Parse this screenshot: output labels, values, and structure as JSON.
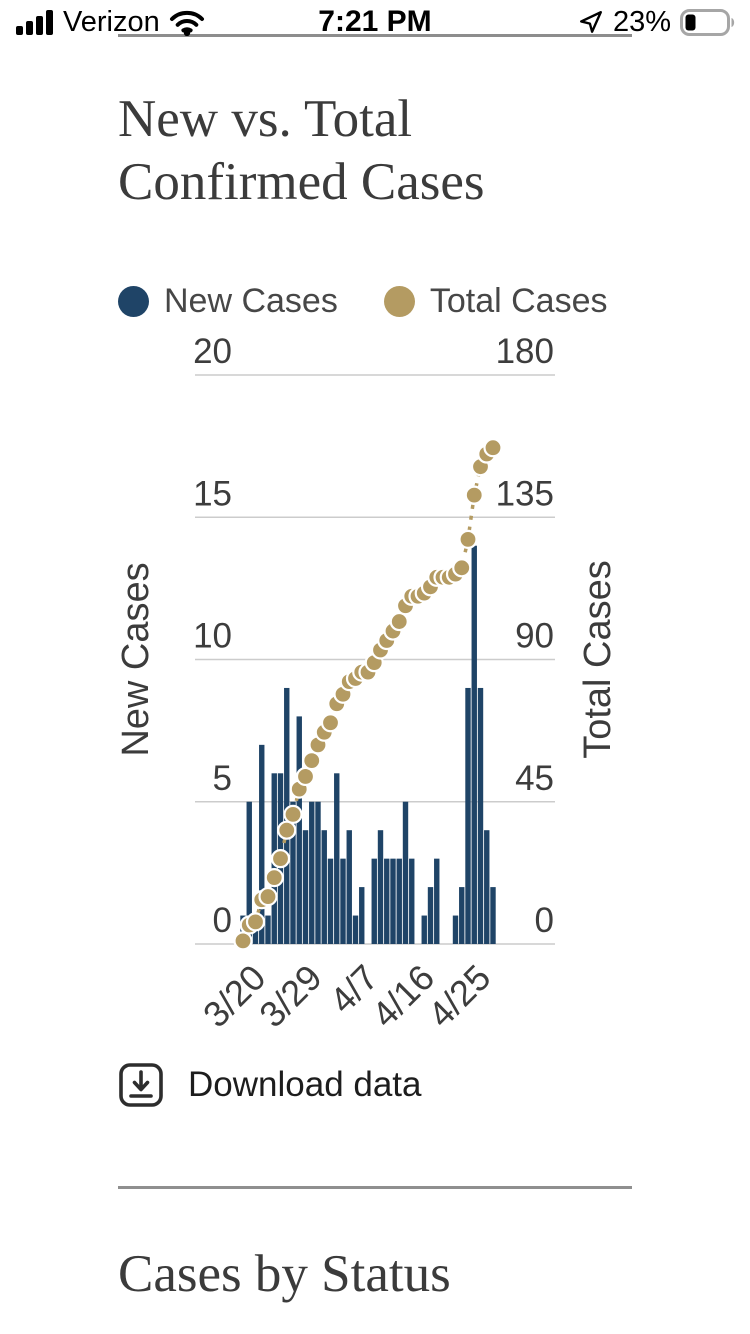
{
  "status_bar": {
    "carrier": "Verizon",
    "time": "7:21 PM",
    "battery_percent": "23%"
  },
  "page": {
    "title": "New vs. Total Confirmed Cases",
    "download_label": "Download data",
    "next_section_title": "Cases by Status"
  },
  "icons": [
    "cellular-signal-icon",
    "wifi-icon",
    "location-arrow-icon",
    "battery-icon",
    "download-icon"
  ],
  "colors": {
    "new_cases": "#1f4467",
    "total_cases": "#b49b62",
    "gridline": "#cccccc",
    "tick_text": "#3d3d3d",
    "axis_title": "#3c3c3c",
    "heading": "#3b3b3b",
    "divider": "#8f8f8f",
    "legend_text": "#474747",
    "download_text": "#1d1d1d"
  },
  "chart_data": {
    "type": "combo-bar-scatter",
    "title": "New vs. Total Confirmed Cases",
    "grid": true,
    "legend_position": "top",
    "legend": [
      {
        "label": "New Cases",
        "color": "#1f4467"
      },
      {
        "label": "Total Cases",
        "color": "#b49b62"
      }
    ],
    "left_axis": {
      "label": "New Cases",
      "ticks": [
        0,
        5,
        10,
        15,
        20
      ],
      "range": [
        0,
        20
      ]
    },
    "right_axis": {
      "label": "Total Cases",
      "ticks": [
        0,
        45,
        90,
        135,
        180
      ],
      "range": [
        0,
        180
      ]
    },
    "x_ticks": [
      {
        "index": 3,
        "label": "3/20"
      },
      {
        "index": 12,
        "label": "3/29"
      },
      {
        "index": 21,
        "label": "4/7"
      },
      {
        "index": 30,
        "label": "4/16"
      },
      {
        "index": 39,
        "label": "4/25"
      }
    ],
    "dates": [
      "3/17",
      "3/18",
      "3/19",
      "3/20",
      "3/21",
      "3/22",
      "3/23",
      "3/24",
      "3/25",
      "3/26",
      "3/27",
      "3/28",
      "3/29",
      "3/30",
      "3/31",
      "4/1",
      "4/2",
      "4/3",
      "4/4",
      "4/5",
      "4/6",
      "4/7",
      "4/8",
      "4/9",
      "4/10",
      "4/11",
      "4/12",
      "4/13",
      "4/14",
      "4/15",
      "4/16",
      "4/17",
      "4/18",
      "4/19",
      "4/20",
      "4/21",
      "4/22",
      "4/23",
      "4/24",
      "4/25",
      "4/26"
    ],
    "series": [
      {
        "name": "New Cases",
        "type": "bar",
        "axis": "left",
        "color": "#1f4467",
        "values": [
          1,
          5,
          1,
          7,
          1,
          6,
          6,
          9,
          5,
          8,
          4,
          5,
          5,
          4,
          3,
          6,
          3,
          4,
          1,
          2,
          0,
          3,
          4,
          3,
          3,
          3,
          5,
          3,
          0,
          1,
          2,
          3,
          0,
          0,
          1,
          2,
          9,
          14,
          9,
          4,
          2
        ]
      },
      {
        "name": "Total Cases",
        "type": "scatter-dashed-line",
        "axis": "right",
        "color": "#b49b62",
        "values": [
          1,
          6,
          7,
          14,
          15,
          21,
          27,
          36,
          41,
          49,
          53,
          58,
          63,
          67,
          70,
          76,
          79,
          83,
          84,
          86,
          86,
          89,
          93,
          96,
          99,
          102,
          107,
          110,
          110,
          111,
          113,
          116,
          116,
          116,
          117,
          119,
          128,
          142,
          151,
          155,
          157
        ]
      }
    ]
  }
}
